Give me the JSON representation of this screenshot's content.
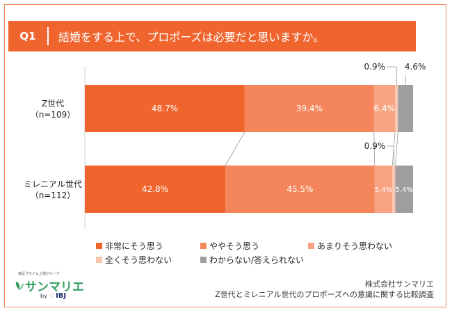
{
  "header": {
    "qnum": "Q1",
    "question": "結婚をする上で、プロポーズは必要だと思いますか。"
  },
  "colors": {
    "accent": "#F0652E",
    "frame": "#F08A5D"
  },
  "chart_data": {
    "type": "bar",
    "orientation": "horizontal-stacked-100",
    "categories": [
      {
        "line1": "Z世代",
        "line2": "（n=109）"
      },
      {
        "line1": "ミレニアル世代",
        "line2": "（n=112）"
      }
    ],
    "series": [
      {
        "name": "非常にそう思う",
        "color": "#F0652E",
        "values": [
          48.7,
          42.8
        ],
        "labels": [
          "48.7%",
          "42.8%"
        ]
      },
      {
        "name": "ややそう思う",
        "color": "#F5855A",
        "values": [
          39.4,
          45.5
        ],
        "labels": [
          "39.4%",
          "45.5%"
        ]
      },
      {
        "name": "あまりそう思わない",
        "color": "#F8A482",
        "values": [
          6.4,
          5.4
        ],
        "labels": [
          "6.4%",
          "5.4%"
        ]
      },
      {
        "name": "全くそう思わない",
        "color": "#FAC6AE",
        "values": [
          0.9,
          0.9
        ],
        "labels": [
          "0.9%",
          "0.9%"
        ]
      },
      {
        "name": "わからない/答えられない",
        "color": "#9E9E9E",
        "values": [
          4.6,
          5.4
        ],
        "labels": [
          "4.6%",
          "5.4%"
        ]
      }
    ],
    "xlim": [
      0,
      100
    ]
  },
  "footer": {
    "logo_tagline": "東証プライム上場グループ",
    "logo_name": "サンマリエ",
    "logo_by": "by",
    "logo_parent": "IBJ",
    "company": "株式会社サンマリエ",
    "survey": "Z世代とミレニアル世代のプロポーズへの意識に関する比較調査"
  }
}
